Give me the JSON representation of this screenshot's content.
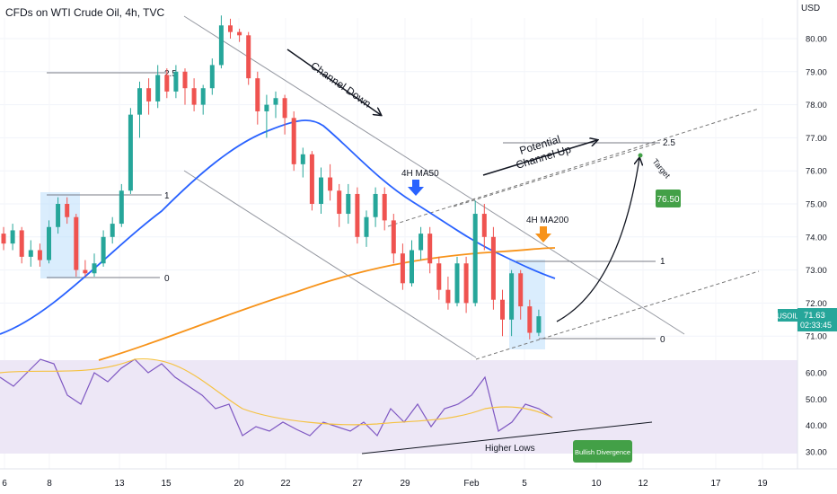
{
  "header": {
    "title": "CFDs on WTI Crude Oil, 4h, TVC",
    "currency": "USD"
  },
  "price_label": {
    "symbol": "USOIL",
    "price": "71.63",
    "countdown": "02:33:45"
  },
  "colors": {
    "up": "#26a69a",
    "down": "#ef5350",
    "ma50": "#2962ff",
    "ma200": "#f7931a",
    "rsi": "#7e57c2",
    "rsi_ma": "#f5c242",
    "rsi_band": "#ede7f6",
    "box": "#bbdefb",
    "green_label": "#43a047"
  },
  "chart_data": [
    {
      "type": "candlestick",
      "title": "CFDs on WTI Crude Oil, 4h, TVC",
      "y_axis": {
        "ticks": [
          71,
          72,
          73,
          74,
          75,
          76,
          77,
          78,
          79,
          80
        ],
        "range": [
          70.5,
          80.9
        ]
      },
      "x_axis": {
        "ticks": [
          "6",
          "8",
          "13",
          "15",
          "20",
          "22",
          "27",
          "29",
          "Feb",
          "5",
          "10",
          "12",
          "17",
          "19"
        ]
      },
      "series": [
        {
          "name": "4H MA50",
          "type": "line",
          "color": "#2962ff"
        },
        {
          "name": "4H MA200",
          "type": "line",
          "color": "#f7931a"
        }
      ],
      "candles_approx": [
        [
          74.1,
          73.8,
          74.3,
          73.6
        ],
        [
          73.8,
          74.2,
          74.4,
          73.6
        ],
        [
          74.2,
          73.4,
          74.3,
          73.2
        ],
        [
          73.4,
          73.6,
          73.9,
          73.1
        ],
        [
          73.6,
          73.3,
          73.8,
          73.1
        ],
        [
          73.3,
          74.3,
          74.5,
          73.2
        ],
        [
          74.3,
          75.0,
          75.2,
          74.1
        ],
        [
          75.0,
          74.6,
          75.2,
          74.4
        ],
        [
          74.6,
          73.0,
          74.7,
          72.8
        ],
        [
          73.0,
          72.9,
          73.3,
          72.8
        ],
        [
          72.9,
          73.2,
          73.5,
          72.8
        ],
        [
          73.2,
          74.0,
          74.2,
          73.1
        ],
        [
          74.0,
          74.4,
          74.6,
          73.8
        ],
        [
          74.4,
          75.4,
          75.6,
          74.3
        ],
        [
          75.4,
          77.7,
          77.9,
          75.3
        ],
        [
          77.7,
          78.5,
          78.7,
          77.0
        ],
        [
          78.5,
          78.1,
          78.8,
          77.7
        ],
        [
          78.1,
          78.9,
          79.2,
          77.9
        ],
        [
          78.9,
          78.4,
          79.1,
          78.2
        ],
        [
          78.4,
          79.0,
          79.2,
          78.2
        ],
        [
          79.0,
          78.5,
          79.1,
          78.0
        ],
        [
          78.5,
          78.0,
          78.8,
          77.8
        ],
        [
          78.0,
          78.5,
          78.6,
          77.7
        ],
        [
          78.5,
          79.2,
          79.4,
          78.3
        ],
        [
          79.2,
          80.4,
          80.7,
          79.1
        ],
        [
          80.4,
          80.2,
          80.6,
          80.0
        ],
        [
          80.2,
          80.1,
          80.3,
          79.9
        ],
        [
          80.1,
          78.8,
          80.2,
          78.6
        ],
        [
          78.8,
          77.8,
          79.0,
          77.4
        ],
        [
          77.8,
          78.0,
          78.3,
          77.0
        ],
        [
          78.0,
          78.2,
          78.4,
          77.6
        ],
        [
          78.2,
          77.6,
          78.3,
          77.1
        ],
        [
          77.6,
          76.2,
          77.8,
          76.0
        ],
        [
          76.2,
          76.5,
          76.7,
          75.8
        ],
        [
          76.5,
          75.0,
          76.6,
          74.8
        ],
        [
          75.0,
          75.8,
          76.1,
          74.7
        ],
        [
          75.8,
          75.4,
          76.2,
          75.1
        ],
        [
          75.4,
          74.7,
          75.6,
          74.3
        ],
        [
          74.7,
          75.3,
          75.6,
          74.4
        ],
        [
          75.3,
          74.0,
          75.5,
          73.8
        ],
        [
          74.0,
          74.6,
          74.8,
          73.7
        ],
        [
          74.6,
          75.3,
          75.5,
          74.3
        ],
        [
          75.3,
          74.5,
          75.5,
          74.2
        ],
        [
          74.5,
          73.5,
          74.7,
          73.2
        ],
        [
          73.5,
          72.6,
          73.8,
          72.4
        ],
        [
          72.6,
          73.6,
          73.9,
          72.5
        ],
        [
          73.6,
          74.1,
          74.3,
          73.3
        ],
        [
          74.1,
          73.2,
          74.3,
          72.9
        ],
        [
          73.2,
          72.4,
          73.4,
          72.1
        ],
        [
          72.4,
          72.0,
          72.8,
          71.8
        ],
        [
          72.0,
          73.2,
          73.4,
          71.9
        ],
        [
          73.2,
          72.0,
          73.4,
          71.7
        ],
        [
          72.0,
          74.7,
          75.1,
          71.9
        ],
        [
          74.7,
          74.0,
          75.0,
          73.6
        ],
        [
          74.0,
          72.1,
          74.3,
          71.8
        ],
        [
          72.1,
          71.5,
          72.4,
          71.0
        ],
        [
          71.5,
          72.9,
          73.0,
          71.0
        ],
        [
          72.9,
          71.9,
          73.0,
          71.5
        ],
        [
          71.9,
          71.1,
          72.1,
          70.9
        ],
        [
          71.1,
          71.6,
          71.8,
          71.0
        ]
      ]
    },
    {
      "type": "line",
      "title": "",
      "y_axis": {
        "ticks": [
          30,
          40,
          50,
          60
        ],
        "range": [
          25,
          66
        ]
      },
      "band": [
        30,
        70
      ],
      "series": [
        {
          "name": "",
          "color": "#7e57c2"
        },
        {
          "name": "",
          "color": "#f5c242"
        }
      ]
    }
  ],
  "annotations": {
    "channel_down": "Channel Down",
    "potential_channel_up": "Potential\nChannel Up",
    "ma50_label": "4H MA50",
    "ma200_label": "4H MA200",
    "target_text": "Target",
    "target_value": "76.50",
    "higher_lows": "Higher Lows",
    "bullish_divergence": "Bullish Divergence",
    "fib_left": [
      "2.5",
      "1",
      "0"
    ],
    "fib_right": [
      "2.5",
      "1",
      "0"
    ]
  }
}
